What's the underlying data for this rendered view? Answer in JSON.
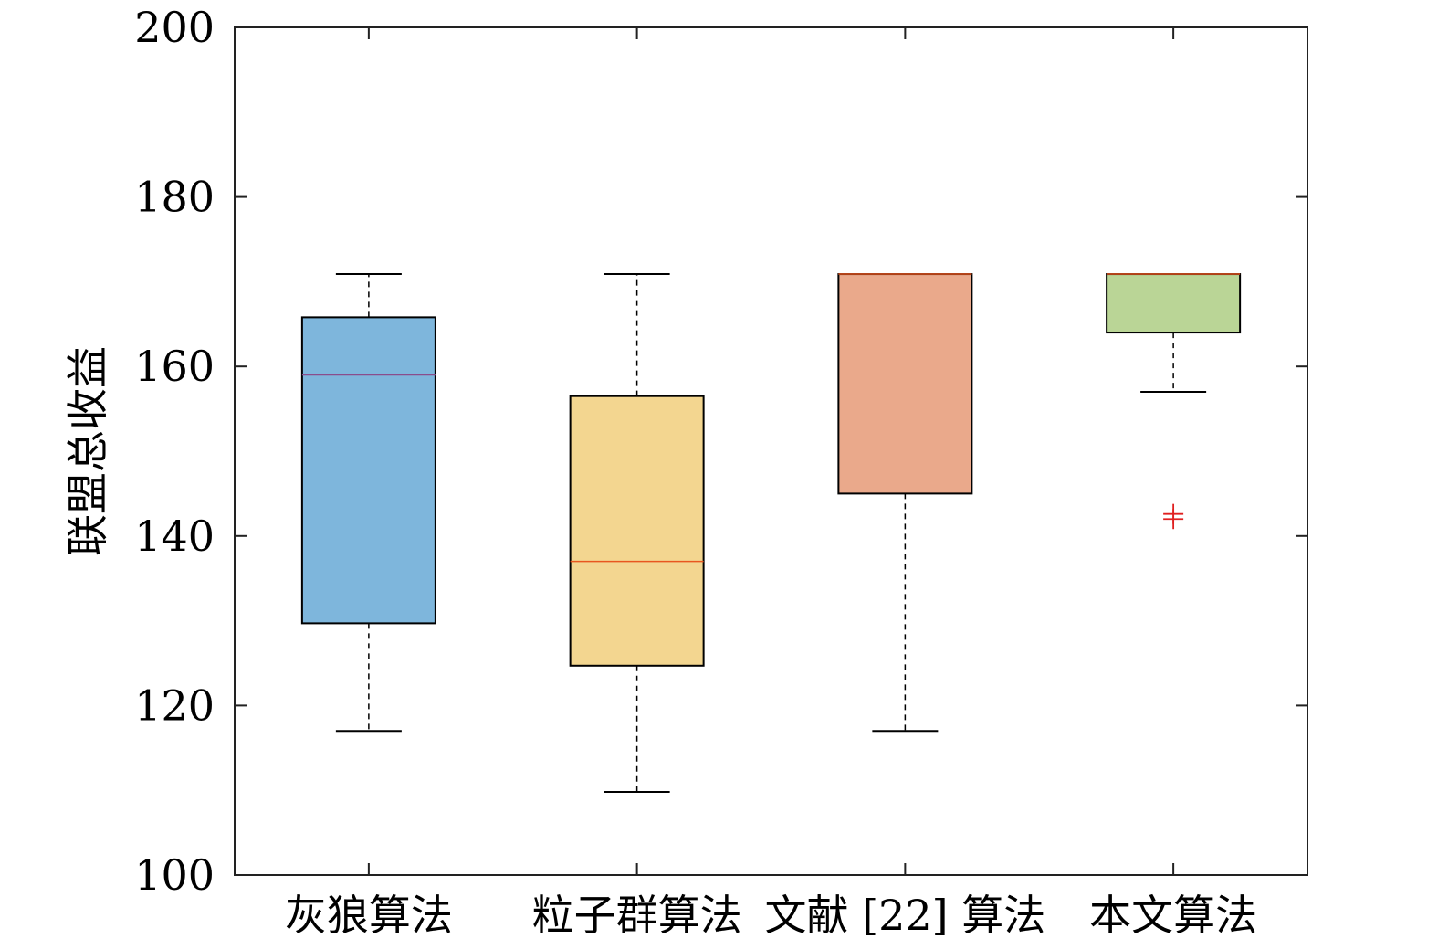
{
  "chart_data": {
    "type": "box",
    "title": "",
    "xlabel": "",
    "ylabel": "联盟总收益",
    "ylim": [
      100,
      200
    ],
    "yticks": [
      100,
      120,
      140,
      160,
      180,
      200
    ],
    "grid": false,
    "categories": [
      "灰狼算法",
      "粒子群算法",
      "文献 [22] 算法",
      "本文算法"
    ],
    "boxes": [
      {
        "category": "灰狼算法",
        "whisker_low": 117,
        "q1": 129.7,
        "median": 159,
        "q3": 165.8,
        "whisker_high": 170.9,
        "outliers": [],
        "color": "#7eb6dc"
      },
      {
        "category": "粒子群算法",
        "whisker_low": 109.8,
        "q1": 124.7,
        "median": 137,
        "q3": 156.5,
        "whisker_high": 170.9,
        "outliers": [],
        "color": "#f3d690"
      },
      {
        "category": "文献 [22] 算法",
        "whisker_low": 117,
        "q1": 145,
        "median": 170.9,
        "q3": 170.9,
        "whisker_high": 170.9,
        "outliers": [],
        "color": "#eaa98b"
      },
      {
        "category": "本文算法",
        "whisker_low": 157,
        "q1": 164,
        "median": 170.9,
        "q3": 170.9,
        "whisker_high": 170.9,
        "outliers": [
          142,
          142.6
        ],
        "color": "#bad596"
      }
    ],
    "median_colors": [
      "#8a4d8c",
      "#e8571f",
      "#e8571f",
      "#e8571f"
    ],
    "outlier_color": "#e02020",
    "axis_color": "#222222"
  }
}
